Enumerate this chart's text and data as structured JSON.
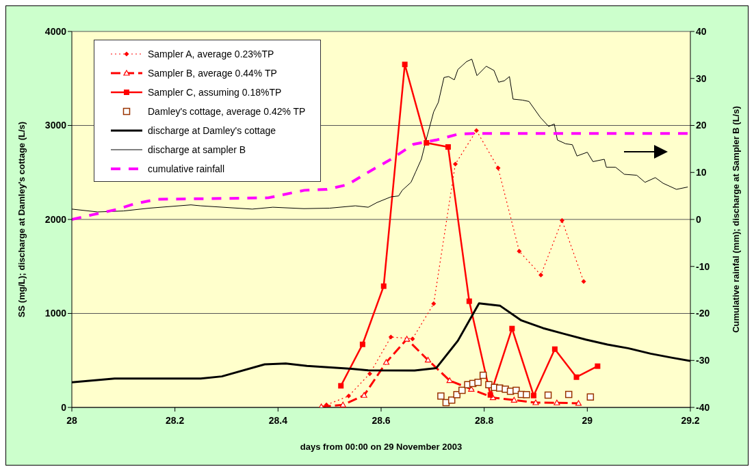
{
  "chart_data": {
    "type": "line",
    "xlabel": "days from 00:00 on 29 November 2003",
    "ylabel": "SS (mg/L); discharge at Damley's cottage (L/s)",
    "y2label": "Cumulative rainfal (mm); discharge at Sampler B (L/s)",
    "xlim": [
      28,
      29.2
    ],
    "xticks": [
      28,
      28.2,
      28.4,
      28.6,
      28.8,
      29,
      29.2
    ],
    "ylim": [
      0,
      4000
    ],
    "yticks": [
      0,
      1000,
      2000,
      3000,
      4000
    ],
    "y2lim": [
      -40,
      40
    ],
    "y2ticks": [
      -40,
      -30,
      -20,
      -10,
      0,
      10,
      20,
      30,
      40
    ],
    "grid": "y",
    "legend": "top left",
    "series": [
      {
        "name": "Sampler A, average 0.23%TP",
        "color": "#ff0000",
        "marker": "diamond",
        "line_style": "dotted",
        "x": [
          28.494,
          28.537,
          28.578,
          28.619,
          28.661,
          28.702,
          28.744,
          28.785,
          28.827,
          28.868,
          28.91,
          28.951,
          28.993
        ],
        "values": [
          27,
          121,
          359,
          749,
          730,
          1103,
          2589,
          2946,
          2548,
          1661,
          1409,
          1990,
          1340
        ]
      },
      {
        "name": "Sampler B, average 0.44% TP",
        "color": "#ff0000",
        "marker": "triangle",
        "line_style": "dashed",
        "x": [
          28.484,
          28.526,
          28.567,
          28.61,
          28.65,
          28.691,
          28.733,
          28.775,
          28.817,
          28.858,
          28.9,
          28.941,
          28.983
        ],
        "values": [
          7,
          27,
          129,
          480,
          727,
          504,
          286,
          194,
          104,
          78,
          51,
          49,
          44
        ]
      },
      {
        "name": "Sampler C, assuming 0.18%TP",
        "color": "#ff0000",
        "marker": "square",
        "line_style": "solid",
        "x": [
          28.522,
          28.564,
          28.605,
          28.646,
          28.688,
          28.73,
          28.771,
          28.812,
          28.854,
          28.896,
          28.937,
          28.979,
          29.02
        ],
        "values": [
          230,
          671,
          1290,
          3649,
          2815,
          2771,
          1130,
          133,
          839,
          126,
          620,
          322,
          439
        ]
      },
      {
        "type": "scatter",
        "name": "Damley's cottage, average 0.42% TP",
        "color": "#993300",
        "marker": "square",
        "x": [
          28.716,
          28.726,
          28.737,
          28.747,
          28.757,
          28.768,
          28.778,
          28.788,
          28.798,
          28.809,
          28.82,
          28.83,
          28.841,
          28.851,
          28.862,
          28.872,
          28.882,
          28.924,
          28.964,
          29.006
        ],
        "values": [
          121,
          51,
          78,
          136,
          182,
          242,
          255,
          267,
          342,
          242,
          213,
          206,
          194,
          172,
          182,
          138,
          136,
          131,
          138,
          111
        ]
      },
      {
        "name": "discharge at Damley's cottage",
        "color": "#000000",
        "marker": "none",
        "line_style": "solid",
        "x": [
          28.0,
          28.083,
          28.125,
          28.167,
          28.208,
          28.25,
          28.291,
          28.374,
          28.415,
          28.456,
          28.539,
          28.575,
          28.665,
          28.707,
          28.749,
          28.79,
          28.831,
          28.872,
          28.914,
          28.955,
          28.997,
          29.039,
          29.079,
          29.123,
          29.165,
          29.2
        ],
        "values": [
          267,
          308,
          308,
          308,
          308,
          308,
          330,
          458,
          468,
          441,
          412,
          395,
          393,
          419,
          710,
          1108,
          1081,
          926,
          844,
          783,
          722,
          669,
          630,
          572,
          528,
          495
        ]
      },
      {
        "name": "discharge at sampler B",
        "color": "#000000",
        "marker": "none",
        "line_style": "solid",
        "axis": "y2",
        "x": [
          28.0,
          28.05,
          28.1,
          28.15,
          28.231,
          28.25,
          28.35,
          28.39,
          28.45,
          28.5,
          28.55,
          28.575,
          28.592,
          28.619,
          28.634,
          28.641,
          28.658,
          28.667,
          28.678,
          28.689,
          28.702,
          28.711,
          28.722,
          28.731,
          28.742,
          28.749,
          28.757,
          28.766,
          28.776,
          28.786,
          28.804,
          28.819,
          28.828,
          28.839,
          28.849,
          28.856,
          28.874,
          28.887,
          28.909,
          28.925,
          28.936,
          28.942,
          28.958,
          28.971,
          28.98,
          29.0,
          29.011,
          29.033,
          29.037,
          29.055,
          29.072,
          29.096,
          29.112,
          29.132,
          29.147,
          29.173,
          29.195
        ],
        "values": [
          2.2,
          1.6,
          1.8,
          2.4,
          3.1,
          2.9,
          2.2,
          2.6,
          2.3,
          2.4,
          2.9,
          2.6,
          3.6,
          4.8,
          5.0,
          6.2,
          7.9,
          10.1,
          12.8,
          17.6,
          22.9,
          24.9,
          30.2,
          30.4,
          29.7,
          31.9,
          32.7,
          33.6,
          34.1,
          30.6,
          32.6,
          31.7,
          29.2,
          29.5,
          30.4,
          25.6,
          25.4,
          25.1,
          21.7,
          19.8,
          20.3,
          16.9,
          16.1,
          15.9,
          13.5,
          14.3,
          12.3,
          12.8,
          11.1,
          11.1,
          9.6,
          9.4,
          7.9,
          8.9,
          7.7,
          6.4,
          6.9
        ]
      },
      {
        "name": "cumulative rainfall",
        "color": "#ff00ff",
        "marker": "none",
        "line_style": "dashed",
        "axis": "y2",
        "x": [
          28.0,
          28.04,
          28.086,
          28.121,
          28.165,
          28.25,
          28.381,
          28.451,
          28.495,
          28.535,
          28.579,
          28.619,
          28.663,
          28.707,
          28.751,
          28.786,
          29.2
        ],
        "values": [
          0,
          1.0,
          2.1,
          3.3,
          4.3,
          4.4,
          4.6,
          6.2,
          6.4,
          7.4,
          10.3,
          12.8,
          16.0,
          16.9,
          18.2,
          18.3,
          18.3
        ]
      }
    ]
  }
}
